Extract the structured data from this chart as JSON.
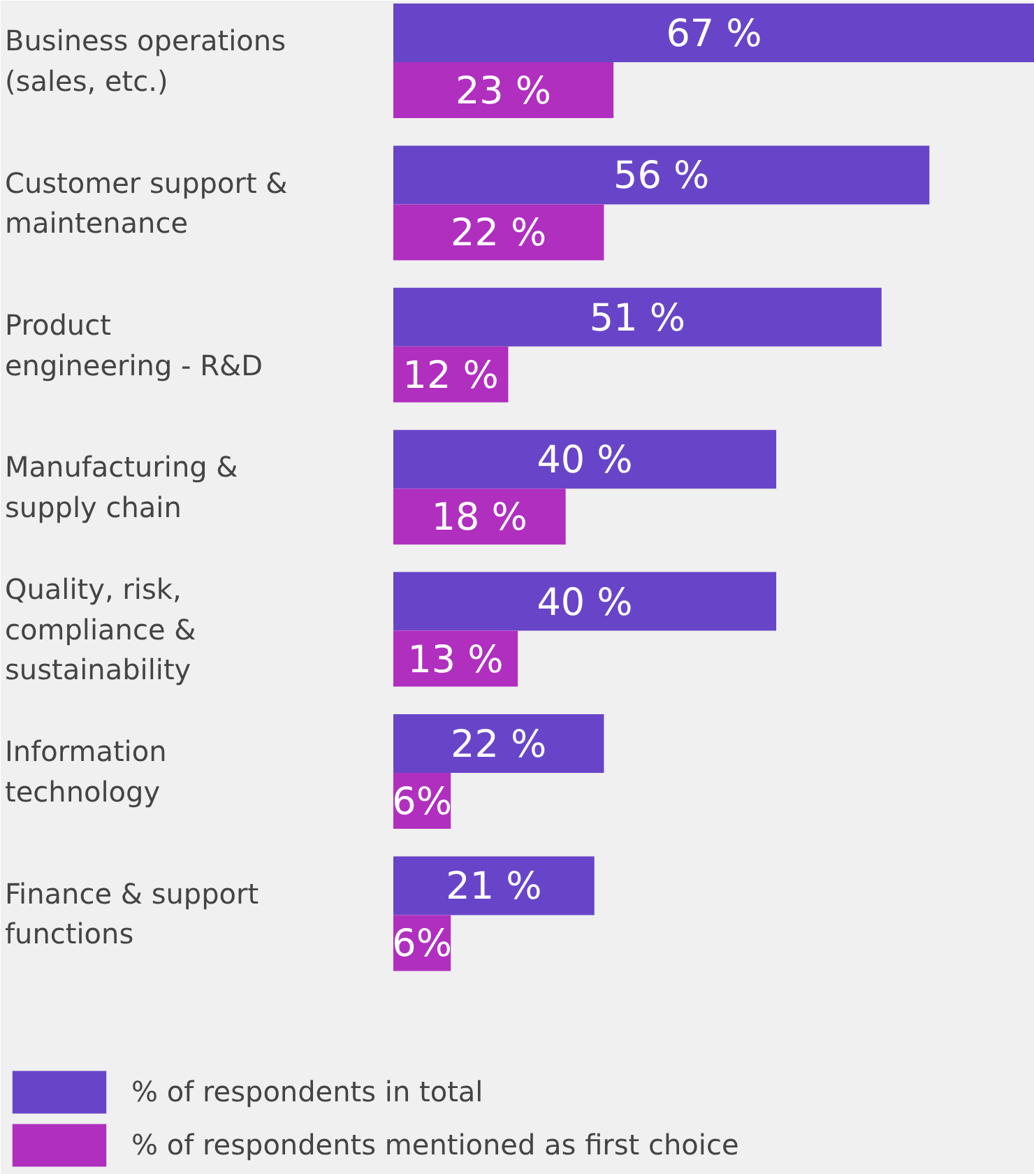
{
  "chart_data": {
    "type": "bar",
    "orientation": "horizontal",
    "categories": [
      "Business operations\n(sales, etc.)",
      "Customer support &\nmaintenance",
      "Product\nengineering -  R&D",
      "Manufacturing &\nsupply chain",
      "Quality, risk,\ncompliance &\nsustainability",
      "Information\ntechnology",
      "Finance & support\nfunctions"
    ],
    "series": [
      {
        "name": "% of respondents in total",
        "color": "#6845c8",
        "values": [
          67,
          56,
          51,
          40,
          40,
          22,
          21
        ],
        "value_labels": [
          "67 %",
          "56 %",
          "51 %",
          "40 %",
          "40 %",
          "22 %",
          "21 %"
        ]
      },
      {
        "name": "% of respondents mentioned as first choice",
        "color": "#b02fbf",
        "values": [
          23,
          22,
          12,
          18,
          13,
          6,
          6
        ],
        "value_labels": [
          "23 %",
          "22 %",
          "12 %",
          "18 %",
          "13 %",
          "6%",
          "6%"
        ]
      }
    ],
    "xlim": [
      0,
      67
    ],
    "tick_labels": false,
    "grid": false,
    "legend": "bottom"
  }
}
